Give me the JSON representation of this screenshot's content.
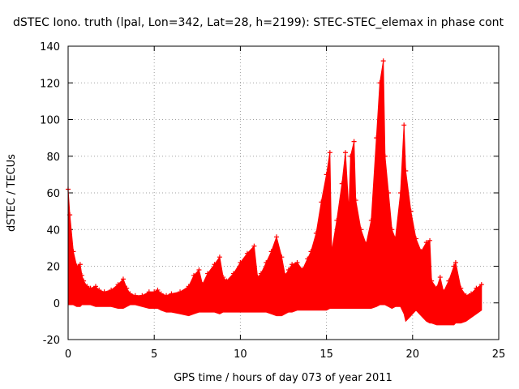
{
  "chart_data": {
    "type": "area",
    "title": "dSTEC Iono. truth (lpal, Lon=342, Lat=28, h=2199): STEC-STEC_elemax in phase cont",
    "xlabel": "GPS time / hours of day 073 of year 2011",
    "ylabel": "dSTEC  / TECUs",
    "xlim": [
      0,
      25
    ],
    "ylim": [
      -20,
      140
    ],
    "xticks": [
      0,
      5,
      10,
      15,
      20,
      25
    ],
    "yticks": [
      -20,
      0,
      20,
      40,
      60,
      80,
      100,
      120,
      140
    ],
    "grid": true,
    "color": "#ff0000",
    "marker": "+",
    "series": [
      {
        "x": [
          0.0,
          0.1,
          0.3,
          0.5,
          0.7,
          0.8,
          0.9,
          1.1,
          1.3,
          1.6,
          1.8,
          2.1,
          2.5,
          2.9,
          3.2,
          3.4,
          3.6,
          3.9,
          4.3,
          4.7,
          5.0,
          5.2,
          5.4,
          5.7,
          6.0,
          6.5,
          7.0,
          7.3,
          7.6,
          7.8,
          8.1,
          8.5,
          8.8,
          9.0,
          9.2,
          9.6,
          10.0,
          10.4,
          10.8,
          11.0,
          11.2,
          11.5,
          11.8,
          12.1,
          12.4,
          12.6,
          12.8,
          13.0,
          13.3,
          13.6,
          13.9,
          14.1,
          14.4,
          14.7,
          15.0,
          15.2,
          15.3,
          15.6,
          15.9,
          16.1,
          16.3,
          16.4,
          16.6,
          16.7,
          17.0,
          17.3,
          17.6,
          17.9,
          18.1,
          18.3,
          18.4,
          18.6,
          18.8,
          19.0,
          19.3,
          19.5,
          19.6,
          19.9,
          20.2,
          20.5,
          20.8,
          21.0,
          21.1,
          21.4,
          21.6,
          21.8,
          22.1,
          22.4,
          22.5,
          22.8,
          23.1,
          23.4,
          23.7,
          24.0
        ],
        "y_max": [
          62,
          48,
          28,
          20,
          21,
          15,
          12,
          9,
          8,
          9,
          7,
          6,
          7,
          10,
          13,
          8,
          5,
          4,
          4,
          6,
          6,
          7,
          5,
          4,
          5,
          6,
          9,
          15,
          18,
          10,
          16,
          21,
          25,
          14,
          12,
          16,
          22,
          27,
          31,
          14,
          16,
          22,
          28,
          36,
          25,
          15,
          18,
          21,
          22,
          18,
          24,
          28,
          38,
          55,
          70,
          82,
          28,
          45,
          65,
          82,
          50,
          80,
          88,
          56,
          40,
          32,
          45,
          90,
          120,
          132,
          80,
          60,
          40,
          35,
          60,
          97,
          72,
          50,
          35,
          28,
          33,
          34,
          12,
          8,
          14,
          6,
          12,
          20,
          22,
          8,
          4,
          5,
          8,
          10
        ],
        "y_min": [
          -1,
          -1,
          -1,
          -2,
          -2,
          -1,
          -1,
          -1,
          -1,
          -2,
          -2,
          -2,
          -2,
          -3,
          -3,
          -2,
          -1,
          -1,
          -2,
          -3,
          -3,
          -3,
          -4,
          -5,
          -5,
          -6,
          -7,
          -6,
          -5,
          -5,
          -5,
          -5,
          -6,
          -5,
          -5,
          -5,
          -5,
          -5,
          -5,
          -5,
          -5,
          -5,
          -6,
          -7,
          -7,
          -6,
          -5,
          -5,
          -4,
          -4,
          -4,
          -4,
          -4,
          -4,
          -4,
          -3,
          -3,
          -3,
          -3,
          -3,
          -3,
          -3,
          -3,
          -3,
          -3,
          -3,
          -3,
          -2,
          -1,
          -1,
          -1,
          -2,
          -3,
          -2,
          -2,
          -6,
          -10,
          -7,
          -4,
          -7,
          -10,
          -11,
          -11,
          -12,
          -12,
          -12,
          -12,
          -12,
          -11,
          -11,
          -10,
          -8,
          -6,
          -4
        ]
      }
    ]
  }
}
